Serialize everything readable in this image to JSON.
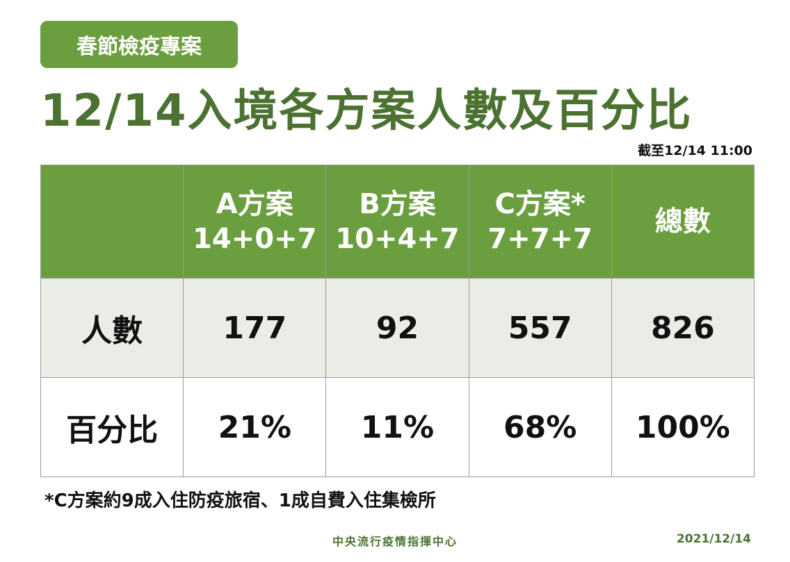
{
  "badge": "春節檢疫專案",
  "title": "12/14入境各方案人數及百分比",
  "as_of": "截至12/14 11:00",
  "table": {
    "columns": [
      {
        "name": "A方案",
        "detail": "14+0+7"
      },
      {
        "name": "B方案",
        "detail": "10+4+7"
      },
      {
        "name": "C方案*",
        "detail": "7+7+7"
      },
      {
        "name": "總數"
      }
    ],
    "rows": [
      {
        "label": "人數",
        "cells": [
          "177",
          "92",
          "557",
          "826"
        ]
      },
      {
        "label": "百分比",
        "cells": [
          "21%",
          "11%",
          "68%",
          "100%"
        ]
      }
    ]
  },
  "footnote": "*C方案約9成入住防疫旅宿、1成自費入住集檢所",
  "footer": {
    "organization": "中央流行疫情指揮中心",
    "date": "2021/12/14"
  }
}
